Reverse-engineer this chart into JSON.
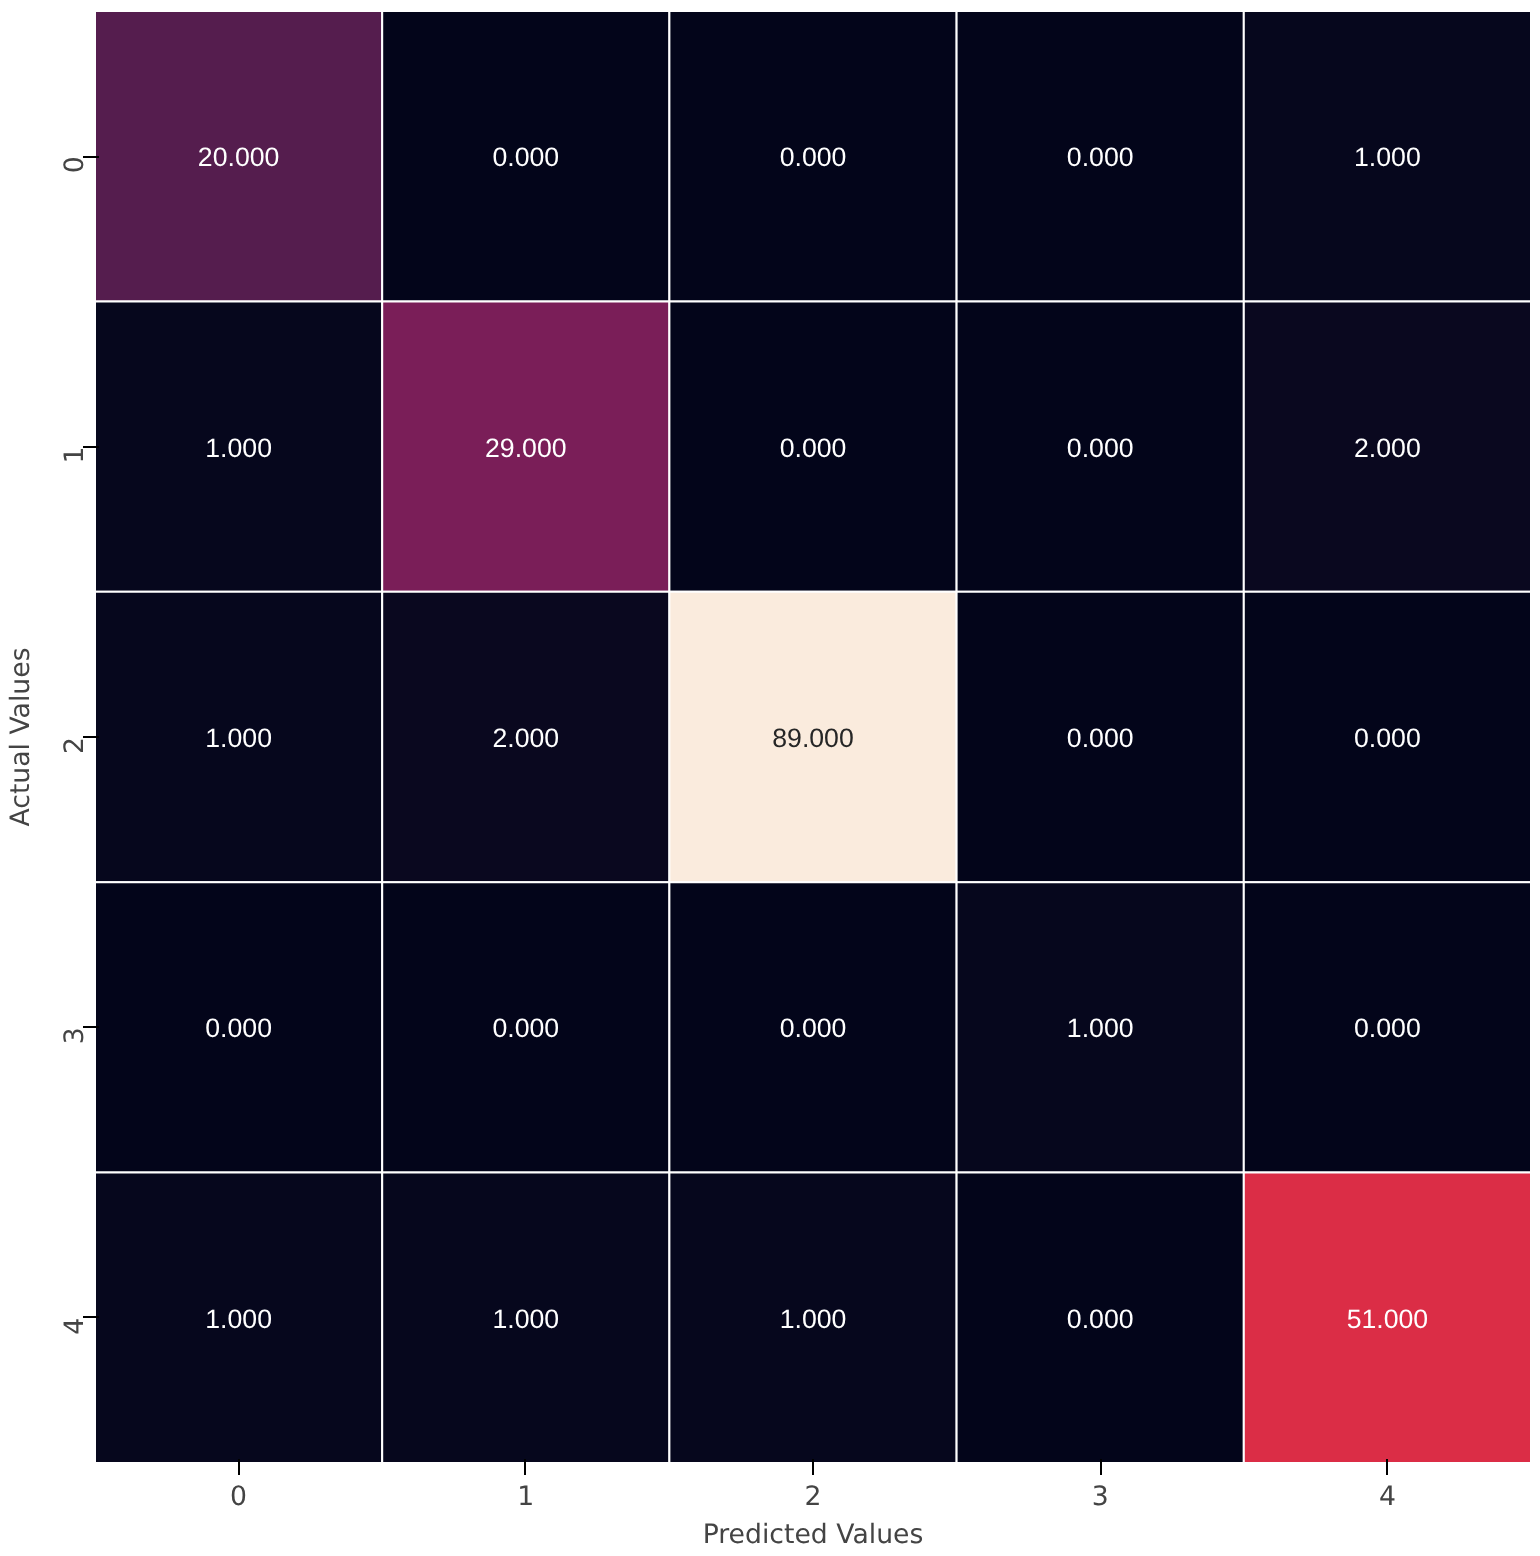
{
  "chart_data": {
    "type": "heatmap",
    "xlabel": "Predicted Values",
    "ylabel": "Actual Values",
    "categories": [
      "0",
      "1",
      "2",
      "3",
      "4"
    ],
    "y_categories": [
      "0",
      "1",
      "2",
      "3",
      "4"
    ],
    "cells": [
      [
        20,
        0,
        0,
        0,
        1
      ],
      [
        1,
        29,
        0,
        0,
        2
      ],
      [
        1,
        2,
        89,
        0,
        0
      ],
      [
        0,
        0,
        0,
        1,
        0
      ],
      [
        1,
        1,
        1,
        0,
        51
      ]
    ],
    "cell_labels": [
      [
        "20.000",
        "0.000",
        "0.000",
        "0.000",
        "1.000"
      ],
      [
        "1.000",
        "29.000",
        "0.000",
        "0.000",
        "2.000"
      ],
      [
        "1.000",
        "2.000",
        "89.000",
        "0.000",
        "0.000"
      ],
      [
        "0.000",
        "0.000",
        "0.000",
        "1.000",
        "0.000"
      ],
      [
        "1.000",
        "1.000",
        "1.000",
        "0.000",
        "51.000"
      ]
    ]
  }
}
